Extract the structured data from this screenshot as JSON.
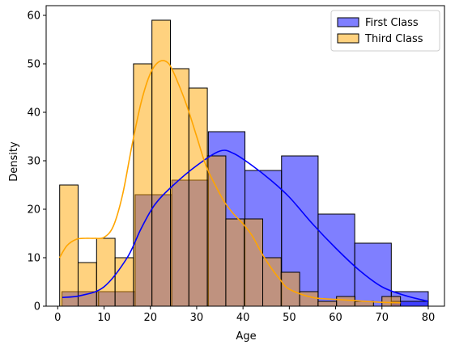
{
  "chart_data": {
    "type": "histogram",
    "xlabel": "Age",
    "ylabel": "Density",
    "xlim": [
      -2.5,
      83.5
    ],
    "ylim": [
      0,
      62
    ],
    "xticks": [
      0,
      10,
      20,
      30,
      40,
      50,
      60,
      70,
      80
    ],
    "yticks": [
      0,
      10,
      20,
      30,
      40,
      50,
      60
    ],
    "legend_position": "top-right",
    "series": [
      {
        "name": "First Class",
        "color": "#0000ff",
        "bars": [
          {
            "x0": 0.92,
            "x1": 8.82,
            "y": 3
          },
          {
            "x0": 8.82,
            "x1": 16.72,
            "y": 3
          },
          {
            "x0": 16.72,
            "x1": 24.62,
            "y": 23
          },
          {
            "x0": 24.62,
            "x1": 32.52,
            "y": 26
          },
          {
            "x0": 32.52,
            "x1": 40.42,
            "y": 36
          },
          {
            "x0": 40.42,
            "x1": 48.32,
            "y": 28
          },
          {
            "x0": 48.32,
            "x1": 56.22,
            "y": 31
          },
          {
            "x0": 56.22,
            "x1": 64.12,
            "y": 19
          },
          {
            "x0": 64.12,
            "x1": 72.02,
            "y": 13
          },
          {
            "x0": 72.02,
            "x1": 80.0,
            "y": 3
          },
          {
            "x0": 72.02,
            "x1": 80.0,
            "y": 1
          }
        ],
        "kde": [
          [
            1,
            1.8
          ],
          [
            5,
            2.2
          ],
          [
            10,
            4
          ],
          [
            15,
            10
          ],
          [
            18,
            16
          ],
          [
            21,
            21
          ],
          [
            25,
            25
          ],
          [
            30,
            29
          ],
          [
            35,
            32
          ],
          [
            38,
            31.5
          ],
          [
            42,
            29
          ],
          [
            46,
            26
          ],
          [
            50,
            22.5
          ],
          [
            55,
            17
          ],
          [
            60,
            12
          ],
          [
            65,
            7.5
          ],
          [
            70,
            4
          ],
          [
            75,
            2.2
          ],
          [
            80,
            1
          ]
        ]
      },
      {
        "name": "Third Class",
        "color": "#ffa500",
        "bars": [
          {
            "x0": 0.42,
            "x1": 4.4,
            "y": 25
          },
          {
            "x0": 4.4,
            "x1": 8.39,
            "y": 9
          },
          {
            "x0": 8.39,
            "x1": 12.38,
            "y": 14
          },
          {
            "x0": 12.38,
            "x1": 16.36,
            "y": 10
          },
          {
            "x0": 16.36,
            "x1": 20.34,
            "y": 50
          },
          {
            "x0": 20.34,
            "x1": 24.33,
            "y": 59
          },
          {
            "x0": 24.33,
            "x1": 28.32,
            "y": 49
          },
          {
            "x0": 28.32,
            "x1": 32.3,
            "y": 45
          },
          {
            "x0": 32.3,
            "x1": 36.29,
            "y": 31
          },
          {
            "x0": 36.29,
            "x1": 40.27,
            "y": 18
          },
          {
            "x0": 40.27,
            "x1": 44.26,
            "y": 18
          },
          {
            "x0": 44.26,
            "x1": 48.24,
            "y": 10
          },
          {
            "x0": 48.24,
            "x1": 52.23,
            "y": 7
          },
          {
            "x0": 52.23,
            "x1": 56.21,
            "y": 3
          },
          {
            "x0": 56.21,
            "x1": 60.2,
            "y": 1
          },
          {
            "x0": 60.2,
            "x1": 64.18,
            "y": 2
          },
          {
            "x0": 64.18,
            "x1": 68.17,
            "y": 1
          },
          {
            "x0": 68.17,
            "x1": 72.15,
            "y": 0
          },
          {
            "x0": 70.0,
            "x1": 74.0,
            "y": 2
          }
        ],
        "kde": [
          [
            0.4,
            10
          ],
          [
            2,
            12.5
          ],
          [
            4,
            13.8
          ],
          [
            6,
            14
          ],
          [
            8,
            14
          ],
          [
            10,
            14.2
          ],
          [
            12,
            16.5
          ],
          [
            14,
            23
          ],
          [
            16,
            33
          ],
          [
            18,
            42
          ],
          [
            20,
            48
          ],
          [
            22,
            50.5
          ],
          [
            24,
            50
          ],
          [
            26,
            46
          ],
          [
            28,
            41
          ],
          [
            30,
            35
          ],
          [
            32,
            29
          ],
          [
            34,
            25
          ],
          [
            36,
            21.5
          ],
          [
            38,
            19
          ],
          [
            40,
            17
          ],
          [
            42,
            14.5
          ],
          [
            44,
            11
          ],
          [
            46,
            8
          ],
          [
            48,
            5.5
          ],
          [
            50,
            3.5
          ],
          [
            55,
            1.8
          ],
          [
            60,
            1.4
          ],
          [
            65,
            1.1
          ],
          [
            70,
            0.8
          ],
          [
            74,
            0.7
          ]
        ]
      }
    ]
  }
}
